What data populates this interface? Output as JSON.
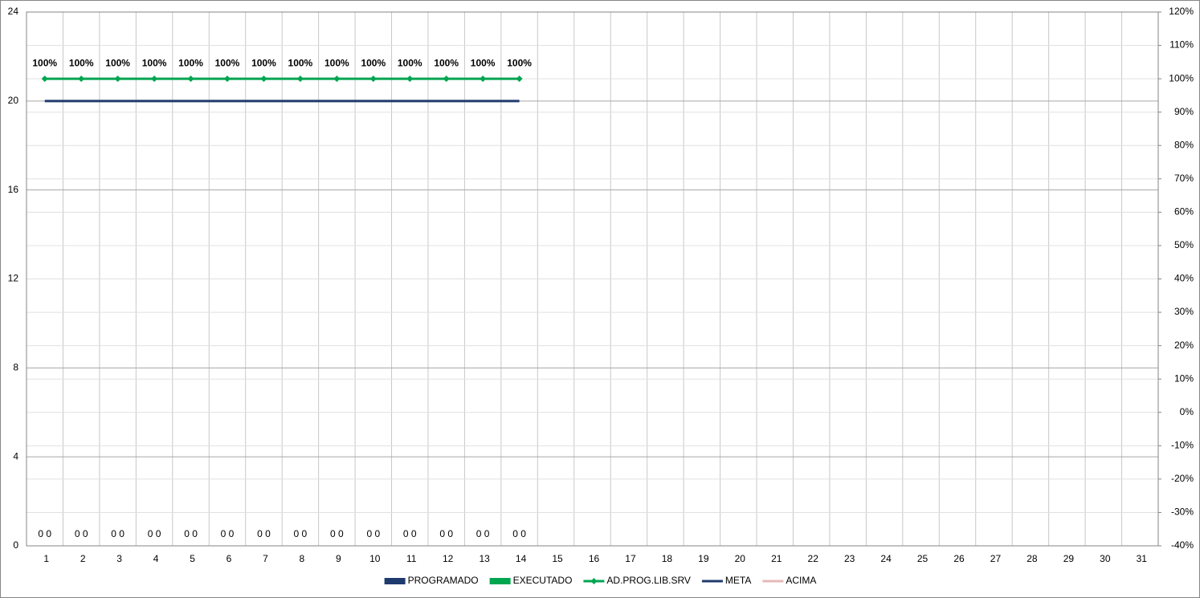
{
  "chart_data": {
    "type": "bar",
    "categories": [
      "1",
      "2",
      "3",
      "4",
      "5",
      "6",
      "7",
      "8",
      "9",
      "10",
      "11",
      "12",
      "13",
      "14",
      "15",
      "16",
      "17",
      "18",
      "19",
      "20",
      "21",
      "22",
      "23",
      "24",
      "25",
      "26",
      "27",
      "28",
      "29",
      "30",
      "31"
    ],
    "ylim": [
      0,
      24
    ],
    "yticks": [
      0,
      4,
      8,
      12,
      16,
      20,
      24
    ],
    "y2lim": [
      -40,
      120
    ],
    "y2ticks": [
      {
        "value": -40,
        "label": "-40%"
      },
      {
        "value": -30,
        "label": "-30%"
      },
      {
        "value": -20,
        "label": "-20%"
      },
      {
        "value": -10,
        "label": "-10%"
      },
      {
        "value": 0,
        "label": "0%"
      },
      {
        "value": 10,
        "label": "10%"
      },
      {
        "value": 20,
        "label": "20%"
      },
      {
        "value": 30,
        "label": "30%"
      },
      {
        "value": 40,
        "label": "40%"
      },
      {
        "value": 50,
        "label": "50%"
      },
      {
        "value": 60,
        "label": "60%"
      },
      {
        "value": 70,
        "label": "70%"
      },
      {
        "value": 80,
        "label": "80%"
      },
      {
        "value": 90,
        "label": "90%"
      },
      {
        "value": 100,
        "label": "100%"
      },
      {
        "value": 110,
        "label": "110%"
      },
      {
        "value": 120,
        "label": "120%"
      }
    ],
    "grid": true,
    "legend": "bottom",
    "series": [
      {
        "name": "PROGRAMADO",
        "type": "bar",
        "color": "#1f3b6e",
        "values": [
          0,
          0,
          0,
          0,
          0,
          0,
          0,
          0,
          0,
          0,
          0,
          0,
          0,
          0,
          null,
          null,
          null,
          null,
          null,
          null,
          null,
          null,
          null,
          null,
          null,
          null,
          null,
          null,
          null,
          null,
          null
        ]
      },
      {
        "name": "EXECUTADO",
        "type": "bar",
        "color": "#00a550",
        "values": [
          0,
          0,
          0,
          0,
          0,
          0,
          0,
          0,
          0,
          0,
          0,
          0,
          0,
          0,
          null,
          null,
          null,
          null,
          null,
          null,
          null,
          null,
          null,
          null,
          null,
          null,
          null,
          null,
          null,
          null,
          null
        ]
      },
      {
        "name": "AD.PROG.LIB.SRV",
        "type": "line",
        "axis": "y2",
        "marker": "diamond",
        "color": "#00a550",
        "values": [
          100,
          100,
          100,
          100,
          100,
          100,
          100,
          100,
          100,
          100,
          100,
          100,
          100,
          100,
          null,
          null,
          null,
          null,
          null,
          null,
          null,
          null,
          null,
          null,
          null,
          null,
          null,
          null,
          null,
          null,
          null
        ],
        "value_labels": [
          "100%",
          "100%",
          "100%",
          "100%",
          "100%",
          "100%",
          "100%",
          "100%",
          "100%",
          "100%",
          "100%",
          "100%",
          "100%",
          "100%",
          null,
          null,
          null,
          null,
          null,
          null,
          null,
          null,
          null,
          null,
          null,
          null,
          null,
          null,
          null,
          null,
          null
        ]
      },
      {
        "name": "META",
        "type": "line",
        "color": "#1f3b6e",
        "values": [
          20,
          20,
          20,
          20,
          20,
          20,
          20,
          20,
          20,
          20,
          20,
          20,
          20,
          20,
          null,
          null,
          null,
          null,
          null,
          null,
          null,
          null,
          null,
          null,
          null,
          null,
          null,
          null,
          null,
          null,
          null
        ]
      },
      {
        "name": "ACIMA",
        "type": "line",
        "color": "#e6b9b8",
        "values": [
          null,
          null,
          null,
          null,
          null,
          null,
          null,
          null,
          null,
          null,
          null,
          null,
          null,
          null,
          null,
          null,
          null,
          null,
          null,
          null,
          null,
          null,
          null,
          null,
          null,
          null,
          null,
          null,
          null,
          null,
          null
        ]
      }
    ]
  }
}
